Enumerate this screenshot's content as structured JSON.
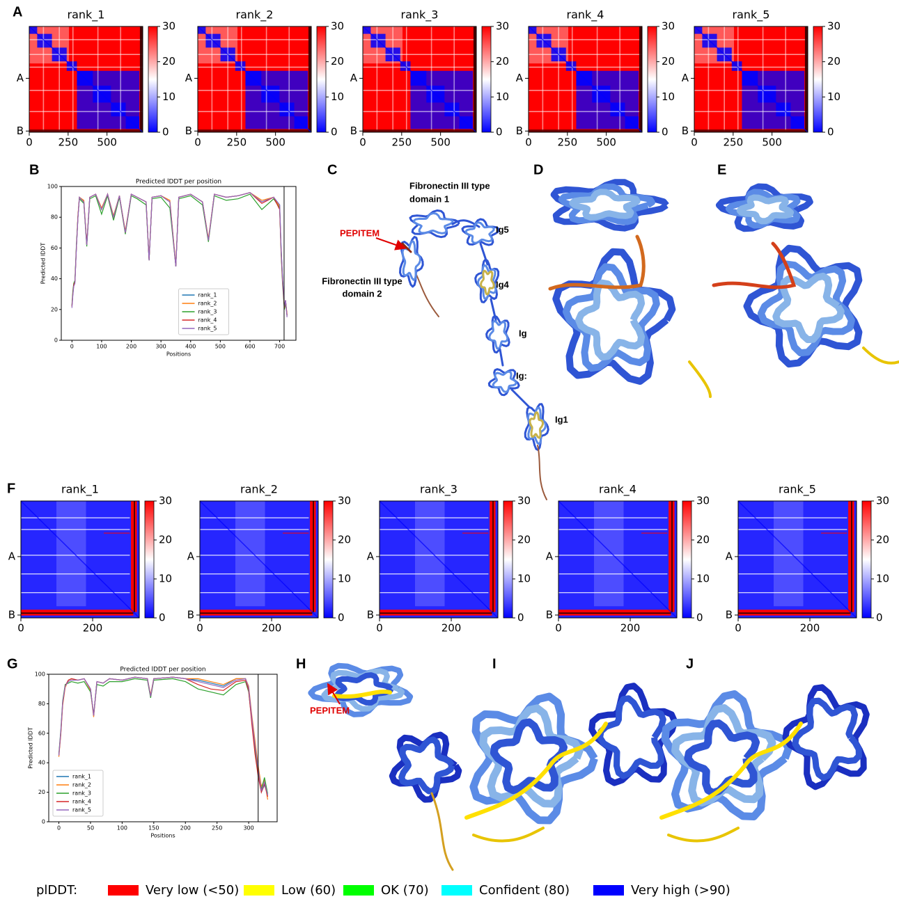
{
  "panel_labels": [
    "A",
    "B",
    "C",
    "D",
    "E",
    "F",
    "G",
    "H",
    "I",
    "J"
  ],
  "chart_data": [
    {
      "type": "heatmap",
      "titles": [
        "rank_1",
        "rank_2",
        "rank_3",
        "rank_4",
        "rank_5"
      ],
      "xlim": [
        0,
        730
      ],
      "xticks": [
        0,
        250,
        500
      ],
      "ylim": [
        0,
        730
      ],
      "yticks": [
        {
          "value": 358,
          "label": "A"
        },
        {
          "value": 722,
          "label": "B"
        }
      ],
      "colorbar": {
        "lim": [
          0,
          30
        ],
        "ticks": [
          0,
          10,
          20,
          30
        ],
        "colors": [
          "#0000ff",
          "#ffffff",
          "#ff0000"
        ]
      }
    },
    {
      "type": "line",
      "title": "Predicted lDDT per position",
      "xlabel": "Positions",
      "ylabel": "Predicted lDDT",
      "xlim": [
        -36,
        755
      ],
      "xticks": [
        0,
        100,
        200,
        300,
        400,
        500,
        600,
        700
      ],
      "ylim": [
        0,
        100
      ],
      "yticks": [
        0,
        20,
        40,
        60,
        80,
        100
      ],
      "chain_break": 715,
      "legend": "lower center",
      "x": [
        0,
        3,
        6,
        10,
        15,
        20,
        25,
        40,
        50,
        60,
        80,
        100,
        120,
        140,
        160,
        180,
        200,
        220,
        250,
        260,
        270,
        300,
        330,
        350,
        360,
        400,
        440,
        460,
        480,
        520,
        560,
        600,
        640,
        680,
        700,
        705,
        710,
        716,
        720,
        725
      ],
      "series": [
        {
          "name": "rank_1",
          "color": "#1f77b4",
          "values": [
            22,
            30,
            36,
            38,
            60,
            80,
            93,
            90,
            62,
            93,
            95,
            85,
            95,
            80,
            94,
            70,
            95,
            93,
            90,
            52,
            93,
            94,
            90,
            48,
            93,
            95,
            90,
            65,
            95,
            93,
            94,
            96,
            90,
            93,
            88,
            60,
            40,
            22,
            26,
            16
          ]
        },
        {
          "name": "rank_2",
          "color": "#ff7f0e",
          "values": [
            22,
            31,
            36,
            38,
            61,
            81,
            93,
            91,
            63,
            93,
            95,
            86,
            95,
            81,
            94,
            71,
            95,
            93,
            90,
            53,
            93,
            94,
            91,
            49,
            93,
            95,
            90,
            66,
            95,
            93,
            94,
            96,
            91,
            93,
            87,
            58,
            38,
            22,
            25,
            17
          ]
        },
        {
          "name": "rank_3",
          "color": "#2ca02c",
          "values": [
            23,
            32,
            37,
            39,
            62,
            80,
            92,
            89,
            61,
            92,
            94,
            82,
            94,
            78,
            93,
            69,
            94,
            92,
            88,
            52,
            92,
            93,
            86,
            48,
            92,
            94,
            88,
            64,
            94,
            91,
            92,
            95,
            85,
            92,
            86,
            56,
            36,
            20,
            24,
            16
          ]
        },
        {
          "name": "rank_4",
          "color": "#d62728",
          "values": [
            22,
            30,
            36,
            38,
            60,
            80,
            93,
            90,
            62,
            93,
            95,
            85,
            95,
            80,
            94,
            70,
            95,
            93,
            90,
            52,
            93,
            94,
            90,
            48,
            93,
            95,
            90,
            65,
            95,
            93,
            94,
            96,
            89,
            93,
            85,
            58,
            38,
            21,
            26,
            16
          ]
        },
        {
          "name": "rank_5",
          "color": "#9467bd",
          "values": [
            21,
            29,
            35,
            37,
            60,
            79,
            93,
            90,
            62,
            93,
            95,
            85,
            95,
            80,
            94,
            70,
            95,
            93,
            90,
            52,
            93,
            94,
            90,
            48,
            93,
            95,
            90,
            65,
            95,
            93,
            94,
            96,
            90,
            93,
            88,
            60,
            40,
            22,
            26,
            15
          ]
        }
      ]
    },
    {
      "type": "heatmap",
      "titles": [
        "rank_1",
        "rank_2",
        "rank_3",
        "rank_4",
        "rank_5"
      ],
      "xlim": [
        0,
        330
      ],
      "xticks": [
        0,
        200
      ],
      "ylim": [
        0,
        330
      ],
      "yticks": [
        {
          "value": 157,
          "label": "A"
        },
        {
          "value": 322,
          "label": "B"
        }
      ],
      "colorbar": {
        "lim": [
          0,
          30
        ],
        "ticks": [
          0,
          10,
          20,
          30
        ],
        "colors": [
          "#0000ff",
          "#ffffff",
          "#ff0000"
        ]
      }
    },
    {
      "type": "line",
      "title": "Predicted lDDT per position",
      "xlabel": "Positions",
      "ylabel": "Predicted lDDT",
      "xlim": [
        -16,
        345
      ],
      "xticks": [
        0,
        50,
        100,
        150,
        200,
        250,
        300
      ],
      "ylim": [
        0,
        100
      ],
      "yticks": [
        0,
        20,
        40,
        60,
        80,
        100
      ],
      "chain_break": 315,
      "legend": "lower left",
      "x": [
        0,
        3,
        6,
        10,
        15,
        20,
        30,
        40,
        50,
        55,
        60,
        70,
        80,
        100,
        120,
        140,
        145,
        150,
        180,
        200,
        220,
        240,
        260,
        280,
        295,
        300,
        305,
        310,
        315,
        320,
        325,
        330
      ],
      "series": [
        {
          "name": "rank_1",
          "color": "#1f77b4",
          "values": [
            45,
            60,
            80,
            92,
            96,
            97,
            96,
            97,
            90,
            72,
            95,
            94,
            97,
            96,
            98,
            97,
            85,
            97,
            98,
            97,
            96,
            94,
            92,
            97,
            97,
            90,
            70,
            50,
            35,
            20,
            25,
            18
          ]
        },
        {
          "name": "rank_2",
          "color": "#ff7f0e",
          "values": [
            44,
            59,
            79,
            91,
            96,
            97,
            96,
            97,
            89,
            71,
            95,
            94,
            97,
            96,
            98,
            97,
            86,
            97,
            98,
            97,
            97,
            95,
            93,
            97,
            97,
            92,
            72,
            55,
            38,
            24,
            28,
            15
          ]
        },
        {
          "name": "rank_3",
          "color": "#2ca02c",
          "values": [
            46,
            62,
            82,
            93,
            94,
            95,
            94,
            95,
            88,
            73,
            93,
            92,
            95,
            95,
            97,
            96,
            84,
            96,
            97,
            95,
            90,
            88,
            86,
            93,
            95,
            88,
            68,
            48,
            33,
            22,
            30,
            19
          ]
        },
        {
          "name": "rank_4",
          "color": "#d62728",
          "values": [
            45,
            60,
            80,
            92,
            96,
            97,
            96,
            97,
            90,
            72,
            95,
            94,
            97,
            96,
            98,
            97,
            85,
            97,
            98,
            97,
            93,
            90,
            89,
            95,
            96,
            89,
            66,
            46,
            31,
            20,
            26,
            17
          ]
        },
        {
          "name": "rank_5",
          "color": "#9467bd",
          "values": [
            45,
            61,
            81,
            92,
            95,
            96,
            96,
            97,
            90,
            72,
            95,
            94,
            97,
            96,
            98,
            97,
            85,
            97,
            98,
            97,
            95,
            93,
            91,
            96,
            97,
            91,
            70,
            52,
            36,
            21,
            27,
            18
          ]
        }
      ]
    }
  ],
  "structure_labels": {
    "C": {
      "pepitem": "PEPITEM",
      "fn1": [
        "Fibronectin III type",
        "domain 1"
      ],
      "fn2": [
        "Fibronectin III type",
        "domain 2"
      ],
      "ig": [
        "Ig5",
        "Ig4",
        "Ig",
        "Ig:",
        "Ig1"
      ]
    },
    "H": {
      "pepitem": "PEPITEM"
    }
  },
  "plddt_legend": {
    "title": "plDDT:",
    "items": [
      {
        "label": "Very low (<50)",
        "color": "#ff0000"
      },
      {
        "label": "Low (60)",
        "color": "#ffff00"
      },
      {
        "label": "OK (70)",
        "color": "#00ff00"
      },
      {
        "label": "Confident (80)",
        "color": "#00ffff"
      },
      {
        "label": "Very high (>90)",
        "color": "#0000ff"
      }
    ]
  }
}
